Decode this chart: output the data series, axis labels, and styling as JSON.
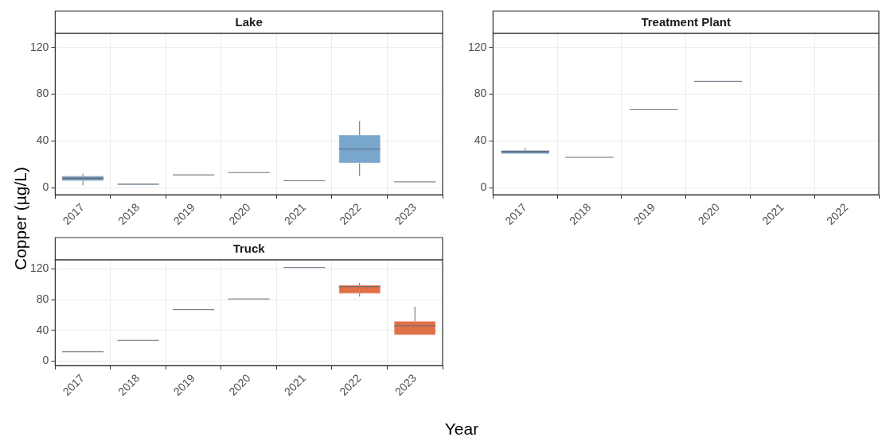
{
  "chart_data": [
    {
      "type": "box",
      "title": "Lake",
      "ylabel": "Copper (µg/L)",
      "categories": [
        "2017",
        "2018",
        "2019",
        "2020",
        "2021",
        "2022",
        "2023"
      ],
      "ylim": [
        -6,
        132
      ],
      "yticks": [
        0,
        40,
        80,
        120
      ],
      "grid": true,
      "colors": [
        "#6f8fb0",
        "#6f8fb0",
        "#5f6b78",
        "#5f6b78",
        "#5f6b78",
        "#79a6cd",
        "#5f6b78"
      ],
      "boxes": [
        {
          "low": 2,
          "q1": 6,
          "median": 8,
          "q3": 10,
          "high": 12
        },
        {
          "low": 2.5,
          "q1": 2.5,
          "median": 3,
          "q3": 3.5,
          "high": 3.5
        },
        {
          "low": 11,
          "q1": 11,
          "median": 11,
          "q3": 11,
          "high": 11
        },
        {
          "low": 13,
          "q1": 13,
          "median": 13,
          "q3": 13,
          "high": 13
        },
        {
          "low": 6,
          "q1": 6,
          "median": 6,
          "q3": 6,
          "high": 6
        },
        {
          "low": 10,
          "q1": 21,
          "median": 33,
          "q3": 45,
          "high": 57
        },
        {
          "low": 5,
          "q1": 5,
          "median": 5,
          "q3": 5,
          "high": 5
        }
      ]
    },
    {
      "type": "box",
      "title": "Treatment Plant",
      "categories": [
        "2017",
        "2018",
        "2019",
        "2020",
        "2021",
        "2022"
      ],
      "ylim": [
        -6,
        132
      ],
      "yticks": [
        0,
        40,
        80,
        120
      ],
      "grid": true,
      "colors": [
        "#6f8fb0",
        "#5f6b78",
        "#5f6b78",
        "#5f6b78",
        "#5f6b78",
        "#5f6b78"
      ],
      "boxes": [
        {
          "low": 29,
          "q1": 29,
          "median": 31,
          "q3": 32,
          "high": 34
        },
        {
          "low": 26,
          "q1": 26,
          "median": 26,
          "q3": 26,
          "high": 26
        },
        {
          "low": 67,
          "q1": 67,
          "median": 67,
          "q3": 67,
          "high": 67
        },
        {
          "low": 91,
          "q1": 91,
          "median": 91,
          "q3": 91,
          "high": 91
        },
        null,
        null
      ]
    },
    {
      "type": "box",
      "title": "Truck",
      "xlabel": "Year",
      "categories": [
        "2017",
        "2018",
        "2019",
        "2020",
        "2021",
        "2022",
        "2023"
      ],
      "ylim": [
        -6,
        132
      ],
      "yticks": [
        0,
        40,
        80,
        120
      ],
      "grid": true,
      "colors": [
        "#5f6b78",
        "#5f6b78",
        "#5f6b78",
        "#5f6b78",
        "#5f6b78",
        "#e07048",
        "#e07048"
      ],
      "boxes": [
        {
          "low": 12,
          "q1": 12,
          "median": 12,
          "q3": 12,
          "high": 12
        },
        {
          "low": 27,
          "q1": 27,
          "median": 27,
          "q3": 27,
          "high": 27
        },
        {
          "low": 67,
          "q1": 67,
          "median": 67,
          "q3": 67,
          "high": 67
        },
        {
          "low": 81,
          "q1": 81,
          "median": 81,
          "q3": 81,
          "high": 81
        },
        {
          "low": 122,
          "q1": 122,
          "median": 122,
          "q3": 122,
          "high": 122
        },
        {
          "low": 84,
          "q1": 88,
          "median": 97,
          "q3": 99,
          "high": 102
        },
        {
          "low": 34,
          "q1": 34,
          "median": 46,
          "q3": 52,
          "high": 71
        }
      ]
    }
  ]
}
